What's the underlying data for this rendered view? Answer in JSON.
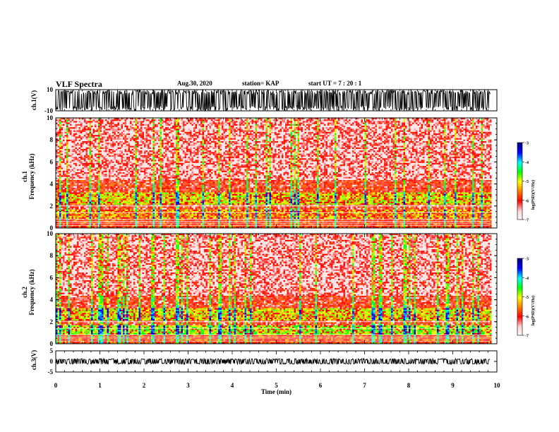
{
  "header": {
    "title": "VLF Spectra",
    "date": "Aug.30, 2020",
    "station": "station= KAP",
    "start": "start  UT =   7 : 20 : 1"
  },
  "chart_data": [
    {
      "type": "line",
      "name": "ch1-waveform",
      "ylabel": "ch.1(V)",
      "ylim": [
        -10,
        10
      ],
      "yticks": [
        "10",
        "-10"
      ],
      "xlim": [
        0,
        10
      ]
    },
    {
      "type": "heatmap",
      "name": "ch1-spectrogram",
      "ylabel": "ch.1\nFrequency (kHz)",
      "ylabel_top": "ch.1",
      "ylabel_bottom": "Frequency  (kHz)",
      "ylim": [
        0,
        10
      ],
      "yticks": [
        "0",
        "2",
        "4",
        "6",
        "8",
        "10"
      ],
      "data_end_min": 9.85,
      "colorbar": {
        "label": "log(PSD)(V²/Hz)",
        "range": [
          -7,
          -3
        ],
        "ticks": [
          "-3",
          "-4",
          "-5",
          "-6",
          "-7"
        ],
        "colors": [
          "#000080",
          "#0000ff",
          "#00ffff",
          "#00ff00",
          "#ffff00",
          "#ff8000",
          "#ff0000",
          "#ffd0d0",
          "#ffffff"
        ]
      }
    },
    {
      "type": "heatmap",
      "name": "ch2-spectrogram",
      "ylabel_top": "ch.2",
      "ylabel_bottom": "Frequency  (kHz)",
      "ylim": [
        0,
        10
      ],
      "yticks": [
        "0",
        "2",
        "4",
        "6",
        "8",
        "10"
      ],
      "data_end_min": 9.85,
      "colorbar": {
        "label": "log(PSD)(V²/Hz)",
        "range": [
          -7,
          -3
        ],
        "ticks": [
          "-3",
          "-4",
          "-5",
          "-6",
          "-7"
        ]
      }
    },
    {
      "type": "line",
      "name": "ch3-waveform",
      "ylabel": "ch.3(V)",
      "ylim": [
        -5,
        5
      ],
      "yticks": [
        "5",
        "0",
        "-5"
      ],
      "xlabel": "Time  (min)",
      "xlim": [
        0,
        10
      ],
      "xticks": [
        "0",
        "1",
        "2",
        "3",
        "4",
        "5",
        "6",
        "7",
        "8",
        "9",
        "10"
      ]
    }
  ]
}
